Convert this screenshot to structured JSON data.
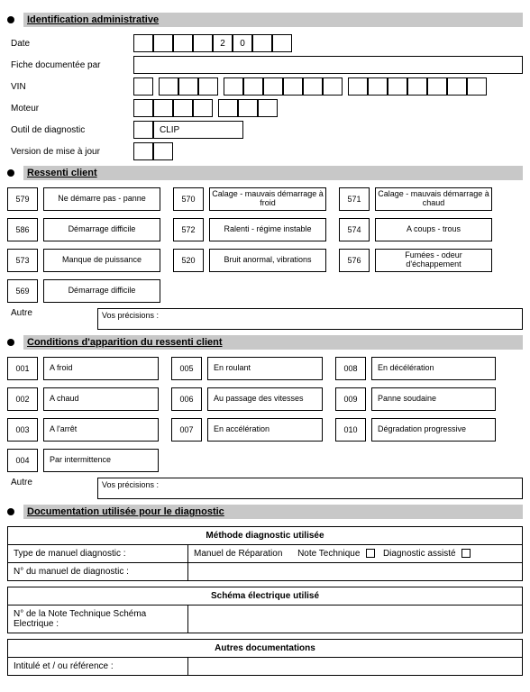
{
  "sections": {
    "ident": "Identification administrative",
    "ressenti": "Ressenti client",
    "conditions": "Conditions d'apparition du ressenti client",
    "doc": "Documentation utilisée pour le diagnostic"
  },
  "ident": {
    "date": "Date",
    "date_cells": [
      "",
      "",
      "",
      "",
      "2",
      "0",
      "",
      ""
    ],
    "fiche": "Fiche documentée par",
    "vin": "VIN",
    "moteur": "Moteur",
    "outil": "Outil de diagnostic",
    "outil_value": "CLIP",
    "version": "Version de mise à jour"
  },
  "ressenti_items": [
    {
      "code": "579",
      "label": "Ne démarre pas - panne"
    },
    {
      "code": "570",
      "label": "Calage - mauvais démarrage à froid"
    },
    {
      "code": "571",
      "label": "Calage - mauvais démarrage à chaud"
    },
    {
      "code": "586",
      "label": "Démarrage difficile"
    },
    {
      "code": "572",
      "label": "Ralenti - régime instable"
    },
    {
      "code": "574",
      "label": "A coups - trous"
    },
    {
      "code": "573",
      "label": "Manque de puissance"
    },
    {
      "code": "520",
      "label": "Bruit anormal, vibrations"
    },
    {
      "code": "576",
      "label": "Fumées - odeur d'échappement"
    },
    {
      "code": "569",
      "label": "Démarrage difficile"
    }
  ],
  "cond_items": [
    {
      "code": "001",
      "label": "A froid"
    },
    {
      "code": "005",
      "label": "En roulant"
    },
    {
      "code": "008",
      "label": "En décélération"
    },
    {
      "code": "002",
      "label": "A chaud"
    },
    {
      "code": "006",
      "label": "Au passage des vitesses"
    },
    {
      "code": "009",
      "label": "Panne soudaine"
    },
    {
      "code": "003",
      "label": "A l'arrêt"
    },
    {
      "code": "007",
      "label": "En accélération"
    },
    {
      "code": "010",
      "label": "Dégradation progressive"
    },
    {
      "code": "004",
      "label": "Par intermittence"
    }
  ],
  "autre_label": "Autre",
  "precis_label": "Vos précisions :",
  "diag": {
    "meth_hdr": "Méthode diagnostic utilisée",
    "type_manuel": "Type de manuel diagnostic :",
    "manuel_rep": "Manuel de Réparation",
    "note_tech": "Note Technique",
    "diag_assiste": "Diagnostic assisté",
    "num_manuel": "N° du manuel de diagnostic :",
    "schema_hdr": "Schéma électrique utilisé",
    "note_schema": "N° de la Note Technique Schéma Electrique :",
    "autres_hdr": "Autres documentations",
    "intitule": "Intitulé et / ou référence :"
  }
}
